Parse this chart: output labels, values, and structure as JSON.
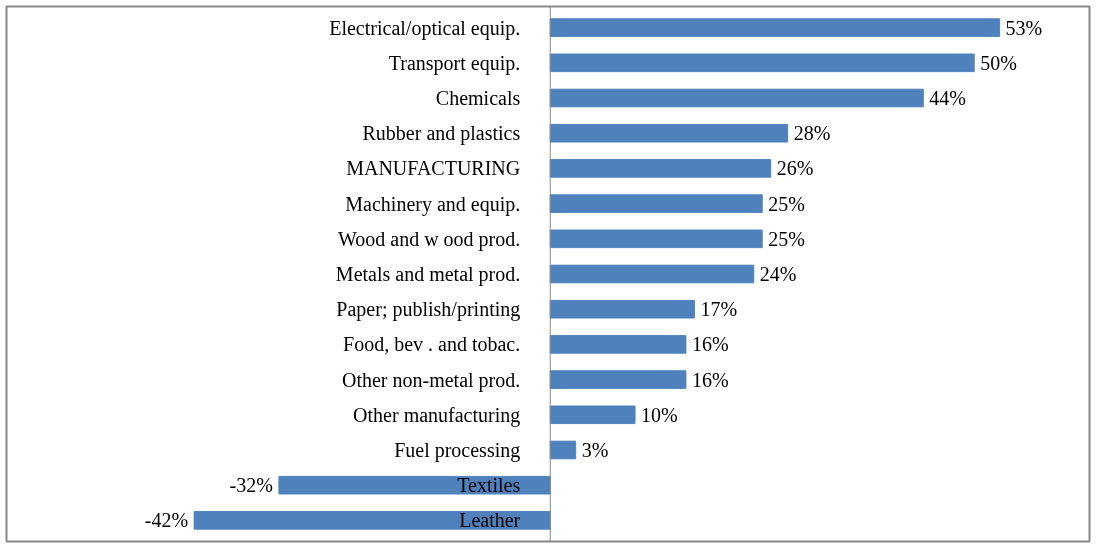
{
  "chart_data": {
    "type": "bar",
    "orientation": "horizontal",
    "categories": [
      "Electrical/optical equip.",
      "Transport equip.",
      "Chemicals",
      "Rubber and plastics",
      "MANUFACTURING",
      "Machinery and equip.",
      "Wood and w ood prod.",
      "Metals and metal prod.",
      "Paper; publish/printing",
      "Food, bev . and tobac.",
      "Other non-metal prod.",
      "Other manufacturing",
      "Fuel processing",
      "Textiles",
      "Leather"
    ],
    "values": [
      53,
      50,
      44,
      28,
      26,
      25,
      25,
      24,
      17,
      16,
      16,
      10,
      3,
      -32,
      -42
    ],
    "value_labels": [
      "53%",
      "50%",
      "44%",
      "28%",
      "26%",
      "25%",
      "25%",
      "24%",
      "17%",
      "16%",
      "16%",
      "10%",
      "3%",
      "-32%",
      "-42%"
    ],
    "color": "#4f81bd",
    "grid": false
  }
}
